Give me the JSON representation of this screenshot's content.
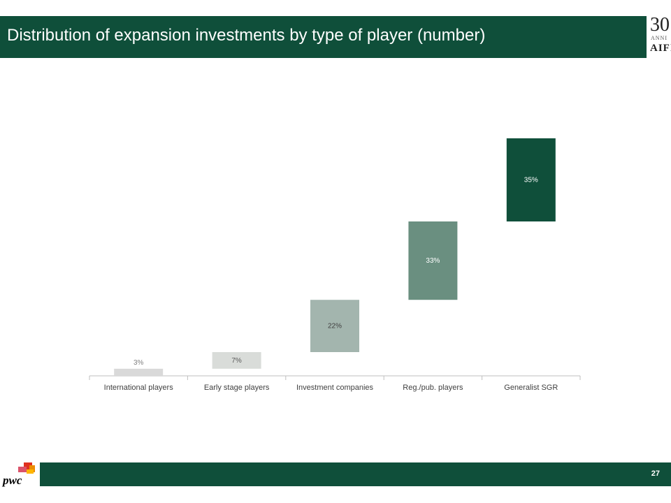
{
  "header": {
    "title": "Distribution of expansion investments by type of player (number)",
    "logo_number": "30",
    "logo_subtitle": "ANNI",
    "logo_name": "AIFI"
  },
  "footer": {
    "page_number": "27",
    "brand": "pwc"
  },
  "colors": {
    "brand_green": "#0f4f3a"
  },
  "chart_data": {
    "type": "bar",
    "subtype": "waterfall",
    "title": "Distribution of expansion investments by type of player (number)",
    "categories": [
      "International players",
      "Early stage players",
      "Investment companies",
      "Reg./pub. players",
      "Generalist SGR"
    ],
    "values": [
      3,
      7,
      22,
      33,
      35
    ],
    "labels": [
      "3%",
      "7%",
      "22%",
      "33%",
      "35%"
    ],
    "colors": [
      "#d9d9d9",
      "#d9dcd9",
      "#a3b5ae",
      "#6a8f80",
      "#0f4f3a"
    ],
    "label_colors": [
      "#7f7f7f",
      "#595959",
      "#404040",
      "#ffffff",
      "#ffffff"
    ],
    "ylim": [
      0,
      100
    ],
    "grid": false,
    "legend": "none",
    "xlabel": "",
    "ylabel": ""
  }
}
